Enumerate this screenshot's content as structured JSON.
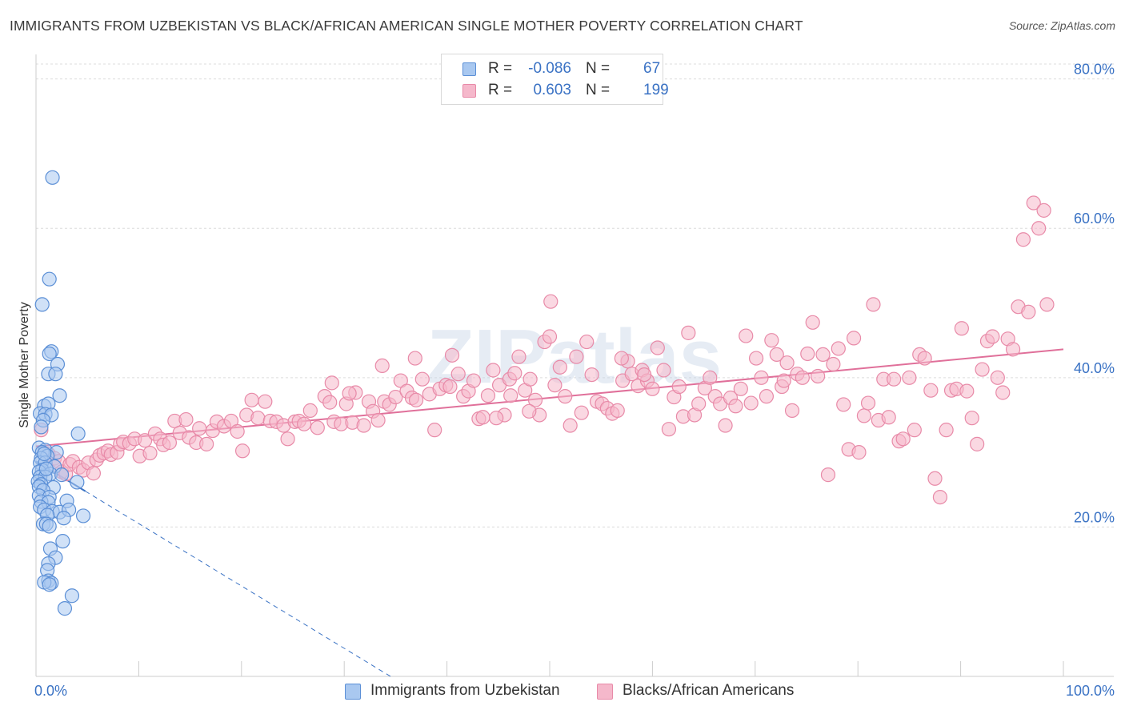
{
  "title": "IMMIGRANTS FROM UZBEKISTAN VS BLACK/AFRICAN AMERICAN SINGLE MOTHER POVERTY CORRELATION CHART",
  "source": "Source: ZipAtlas.com",
  "watermark": "ZIPatlas",
  "colors": {
    "blue_fill": "#a9c8f0",
    "blue_stroke": "#5b8fd6",
    "blue_line": "#3a72c4",
    "pink_fill": "#f5b8cb",
    "pink_stroke": "#e88aa8",
    "pink_line": "#e0709a",
    "axis_label": "#3a72c4",
    "grid": "#dcdcdc"
  },
  "legend": {
    "rows": [
      {
        "r_label": "R =",
        "r_value": "-0.086",
        "n_label": "N =",
        "n_value": "67",
        "color": "blue"
      },
      {
        "r_label": "R =",
        "r_value": "0.603",
        "n_label": "N =",
        "n_value": "199",
        "color": "pink"
      }
    ]
  },
  "bottom_legend": [
    "Immigrants from Uzbekistan",
    "Blacks/African Americans"
  ],
  "chart_data": {
    "type": "scatter",
    "title": "IMMIGRANTS FROM UZBEKISTAN VS BLACK/AFRICAN AMERICAN SINGLE MOTHER POVERTY CORRELATION CHART",
    "ylabel": "Single Mother Poverty",
    "xlabel": "",
    "xlim": [
      0,
      100
    ],
    "ylim": [
      0,
      82
    ],
    "x_tick_labels": [
      "0.0%",
      "100.0%"
    ],
    "y_ticks": [
      20,
      40,
      60,
      80
    ],
    "y_tick_labels": [
      "20.0%",
      "40.0%",
      "60.0%",
      "80.0%"
    ],
    "grid": true,
    "series": [
      {
        "name": "Immigrants from Uzbekistan",
        "color": "blue",
        "points": [
          [
            1.6,
            66.8
          ],
          [
            1.3,
            53.2
          ],
          [
            0.6,
            49.8
          ],
          [
            1.5,
            43.5
          ],
          [
            1.3,
            43.2
          ],
          [
            2.1,
            41.8
          ],
          [
            1.2,
            40.5
          ],
          [
            1.9,
            40.5
          ],
          [
            0.8,
            36.2
          ],
          [
            2.3,
            37.6
          ],
          [
            1.2,
            36.5
          ],
          [
            0.4,
            35.2
          ],
          [
            0.9,
            35.1
          ],
          [
            1.5,
            35.0
          ],
          [
            0.7,
            34.3
          ],
          [
            0.5,
            33.4
          ],
          [
            4.1,
            32.5
          ],
          [
            0.3,
            30.6
          ],
          [
            0.9,
            30.3
          ],
          [
            2.0,
            30.0
          ],
          [
            0.6,
            30.0
          ],
          [
            1.1,
            29.5
          ],
          [
            0.5,
            29.2
          ],
          [
            0.4,
            28.6
          ],
          [
            0.9,
            28.6
          ],
          [
            1.8,
            28.1
          ],
          [
            0.6,
            27.6
          ],
          [
            0.3,
            27.4
          ],
          [
            1.4,
            27.1
          ],
          [
            2.5,
            27.0
          ],
          [
            0.4,
            26.7
          ],
          [
            0.9,
            26.7
          ],
          [
            0.2,
            26.1
          ],
          [
            0.5,
            25.7
          ],
          [
            0.3,
            25.4
          ],
          [
            1.7,
            25.3
          ],
          [
            0.7,
            24.9
          ],
          [
            4.0,
            26.0
          ],
          [
            0.3,
            24.2
          ],
          [
            1.3,
            24.0
          ],
          [
            3.0,
            23.5
          ],
          [
            0.5,
            23.4
          ],
          [
            1.2,
            23.3
          ],
          [
            0.4,
            22.7
          ],
          [
            0.8,
            22.3
          ],
          [
            1.6,
            22.1
          ],
          [
            2.3,
            22.0
          ],
          [
            1.1,
            21.6
          ],
          [
            3.2,
            22.3
          ],
          [
            4.6,
            21.5
          ],
          [
            2.7,
            21.2
          ],
          [
            0.7,
            20.4
          ],
          [
            1.0,
            20.4
          ],
          [
            1.3,
            20.1
          ],
          [
            1.4,
            17.1
          ],
          [
            2.6,
            18.1
          ],
          [
            1.9,
            15.9
          ],
          [
            1.2,
            15.1
          ],
          [
            1.1,
            14.2
          ],
          [
            1.2,
            12.8
          ],
          [
            1.5,
            12.5
          ],
          [
            0.8,
            12.6
          ],
          [
            1.3,
            12.3
          ],
          [
            3.5,
            10.8
          ],
          [
            2.8,
            9.1
          ],
          [
            1.0,
            27.8
          ],
          [
            0.8,
            29.8
          ]
        ]
      },
      {
        "name": "Blacks/African Americans",
        "color": "pink",
        "points": [
          [
            0.5,
            33.0
          ],
          [
            1.2,
            29.8
          ],
          [
            1.8,
            29.2
          ],
          [
            2.2,
            28.8
          ],
          [
            2.5,
            27.4
          ],
          [
            2.9,
            27.1
          ],
          [
            3.3,
            28.4
          ],
          [
            3.6,
            28.8
          ],
          [
            4.2,
            28.0
          ],
          [
            4.6,
            27.6
          ],
          [
            5.1,
            28.6
          ],
          [
            5.6,
            27.2
          ],
          [
            5.9,
            29.0
          ],
          [
            6.2,
            29.6
          ],
          [
            6.6,
            29.9
          ],
          [
            7.0,
            30.2
          ],
          [
            7.3,
            29.7
          ],
          [
            7.9,
            30.0
          ],
          [
            8.2,
            31.1
          ],
          [
            8.5,
            31.4
          ],
          [
            9.1,
            31.2
          ],
          [
            9.6,
            31.8
          ],
          [
            10.1,
            29.5
          ],
          [
            10.6,
            31.6
          ],
          [
            11.1,
            29.9
          ],
          [
            11.6,
            32.5
          ],
          [
            12.1,
            31.8
          ],
          [
            12.4,
            31.0
          ],
          [
            13.0,
            31.3
          ],
          [
            13.5,
            34.2
          ],
          [
            14.0,
            32.6
          ],
          [
            14.6,
            34.4
          ],
          [
            14.9,
            32.0
          ],
          [
            15.6,
            31.3
          ],
          [
            15.9,
            33.2
          ],
          [
            16.6,
            31.1
          ],
          [
            17.2,
            32.9
          ],
          [
            17.6,
            34.1
          ],
          [
            18.3,
            33.5
          ],
          [
            19.0,
            34.2
          ],
          [
            19.6,
            32.8
          ],
          [
            20.1,
            30.2
          ],
          [
            20.5,
            35.0
          ],
          [
            21.0,
            37.0
          ],
          [
            21.6,
            34.6
          ],
          [
            22.3,
            36.8
          ],
          [
            22.8,
            34.2
          ],
          [
            23.4,
            34.1
          ],
          [
            24.1,
            33.6
          ],
          [
            24.5,
            31.8
          ],
          [
            25.2,
            34.1
          ],
          [
            25.6,
            34.2
          ],
          [
            26.1,
            33.8
          ],
          [
            26.7,
            35.6
          ],
          [
            27.4,
            33.3
          ],
          [
            28.1,
            37.5
          ],
          [
            28.6,
            36.7
          ],
          [
            29.0,
            34.1
          ],
          [
            29.7,
            33.8
          ],
          [
            30.2,
            36.5
          ],
          [
            30.8,
            34.0
          ],
          [
            31.1,
            38.0
          ],
          [
            31.9,
            33.6
          ],
          [
            32.4,
            36.8
          ],
          [
            32.8,
            35.5
          ],
          [
            33.3,
            34.3
          ],
          [
            33.9,
            36.8
          ],
          [
            34.4,
            36.4
          ],
          [
            35.0,
            37.4
          ],
          [
            35.5,
            39.6
          ],
          [
            36.1,
            38.2
          ],
          [
            36.6,
            37.3
          ],
          [
            37.0,
            37.0
          ],
          [
            37.6,
            39.8
          ],
          [
            38.3,
            37.8
          ],
          [
            38.8,
            33.0
          ],
          [
            39.3,
            38.5
          ],
          [
            39.9,
            39.0
          ],
          [
            40.5,
            43.0
          ],
          [
            41.1,
            40.5
          ],
          [
            41.6,
            37.5
          ],
          [
            42.1,
            38.2
          ],
          [
            42.6,
            39.6
          ],
          [
            43.1,
            34.5
          ],
          [
            43.5,
            34.7
          ],
          [
            44.0,
            37.6
          ],
          [
            44.5,
            41.0
          ],
          [
            45.1,
            39.0
          ],
          [
            45.6,
            35.0
          ],
          [
            46.1,
            39.8
          ],
          [
            46.6,
            40.6
          ],
          [
            47.0,
            42.8
          ],
          [
            47.6,
            38.3
          ],
          [
            48.1,
            39.8
          ],
          [
            48.6,
            37.0
          ],
          [
            49.0,
            35.0
          ],
          [
            49.5,
            44.8
          ],
          [
            50.0,
            45.5
          ],
          [
            50.5,
            39.0
          ],
          [
            51.0,
            41.4
          ],
          [
            51.5,
            37.5
          ],
          [
            52.0,
            33.6
          ],
          [
            52.6,
            42.8
          ],
          [
            53.1,
            35.3
          ],
          [
            53.6,
            44.8
          ],
          [
            54.1,
            40.4
          ],
          [
            54.6,
            36.8
          ],
          [
            55.1,
            36.5
          ],
          [
            55.6,
            35.9
          ],
          [
            56.1,
            35.2
          ],
          [
            56.6,
            35.6
          ],
          [
            57.1,
            39.6
          ],
          [
            57.6,
            42.2
          ],
          [
            58.0,
            40.5
          ],
          [
            58.6,
            38.9
          ],
          [
            59.0,
            41.0
          ],
          [
            59.5,
            39.6
          ],
          [
            60.0,
            38.5
          ],
          [
            60.5,
            44.0
          ],
          [
            61.1,
            41.0
          ],
          [
            61.6,
            33.1
          ],
          [
            62.1,
            37.4
          ],
          [
            62.6,
            38.8
          ],
          [
            63.0,
            34.8
          ],
          [
            63.5,
            46.0
          ],
          [
            64.1,
            35.0
          ],
          [
            64.5,
            36.5
          ],
          [
            65.1,
            38.6
          ],
          [
            65.6,
            40.0
          ],
          [
            66.1,
            37.5
          ],
          [
            66.6,
            36.5
          ],
          [
            67.1,
            33.6
          ],
          [
            67.6,
            37.3
          ],
          [
            68.1,
            36.2
          ],
          [
            68.6,
            38.5
          ],
          [
            69.1,
            45.6
          ],
          [
            69.6,
            36.6
          ],
          [
            70.1,
            42.6
          ],
          [
            70.6,
            40.0
          ],
          [
            71.1,
            37.5
          ],
          [
            71.6,
            45.0
          ],
          [
            72.1,
            43.1
          ],
          [
            72.6,
            38.8
          ],
          [
            73.1,
            42.0
          ],
          [
            73.6,
            35.6
          ],
          [
            74.1,
            40.5
          ],
          [
            74.6,
            40.0
          ],
          [
            75.1,
            43.2
          ],
          [
            75.6,
            47.4
          ],
          [
            76.1,
            40.2
          ],
          [
            76.6,
            43.1
          ],
          [
            77.1,
            27.0
          ],
          [
            77.6,
            41.8
          ],
          [
            78.1,
            43.9
          ],
          [
            78.6,
            36.4
          ],
          [
            79.1,
            30.4
          ],
          [
            79.6,
            45.3
          ],
          [
            80.1,
            30.0
          ],
          [
            80.6,
            34.9
          ],
          [
            81.0,
            36.6
          ],
          [
            81.5,
            49.8
          ],
          [
            82.0,
            34.3
          ],
          [
            82.5,
            39.8
          ],
          [
            83.0,
            34.7
          ],
          [
            83.5,
            39.8
          ],
          [
            84.0,
            31.5
          ],
          [
            84.4,
            31.8
          ],
          [
            85.0,
            40.0
          ],
          [
            85.5,
            33.0
          ],
          [
            86.0,
            43.1
          ],
          [
            86.5,
            42.6
          ],
          [
            87.1,
            38.3
          ],
          [
            87.5,
            26.5
          ],
          [
            88.0,
            24.0
          ],
          [
            88.6,
            33.0
          ],
          [
            89.1,
            38.3
          ],
          [
            89.6,
            38.5
          ],
          [
            90.1,
            46.6
          ],
          [
            90.6,
            38.2
          ],
          [
            91.1,
            34.6
          ],
          [
            91.6,
            31.1
          ],
          [
            92.1,
            41.1
          ],
          [
            92.6,
            44.9
          ],
          [
            93.1,
            45.5
          ],
          [
            93.6,
            40.0
          ],
          [
            94.1,
            38.0
          ],
          [
            94.6,
            45.2
          ],
          [
            95.1,
            43.8
          ],
          [
            95.6,
            49.5
          ],
          [
            96.1,
            58.5
          ],
          [
            96.6,
            48.8
          ],
          [
            97.1,
            63.4
          ],
          [
            97.6,
            60.0
          ],
          [
            98.1,
            62.4
          ],
          [
            98.4,
            49.8
          ],
          [
            50.1,
            50.2
          ],
          [
            72.8,
            39.6
          ],
          [
            57.0,
            42.6
          ],
          [
            59.2,
            40.4
          ],
          [
            40.3,
            38.8
          ],
          [
            44.8,
            34.6
          ],
          [
            46.2,
            37.6
          ],
          [
            48.0,
            35.5
          ],
          [
            36.9,
            42.6
          ],
          [
            28.8,
            39.3
          ],
          [
            30.5,
            37.9
          ],
          [
            33.7,
            41.6
          ]
        ]
      }
    ],
    "trend_lines": [
      {
        "series": "Immigrants from Uzbekistan",
        "x": [
          0,
          4.8
        ],
        "y": [
          28.8,
          24.8
        ],
        "style": "solid"
      },
      {
        "series": "Immigrants from Uzbekistan",
        "x": [
          4.8,
          34.5
        ],
        "y": [
          24.8,
          0
        ],
        "style": "dashed"
      },
      {
        "series": "Blacks/African Americans",
        "x": [
          0,
          100
        ],
        "y": [
          30.8,
          43.8
        ],
        "style": "solid"
      }
    ]
  }
}
